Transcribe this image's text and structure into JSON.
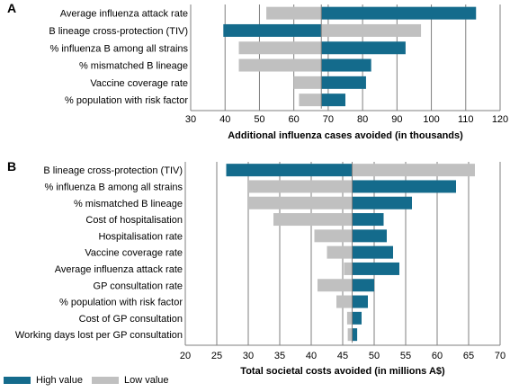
{
  "colors": {
    "high": "#146b8c",
    "low": "#c0c0c0",
    "grid": "#7f7f7f"
  },
  "legend": {
    "high_label": "High value",
    "low_label": "Low value"
  },
  "chart_data": [
    {
      "panel_label": "A",
      "type": "bar",
      "orientation": "horizontal",
      "style": "tornado",
      "xlabel": "Additional influenza cases avoided (in thousands)",
      "xlim": [
        30,
        120
      ],
      "xticks": [
        30,
        40,
        50,
        60,
        70,
        80,
        90,
        100,
        110,
        120
      ],
      "base_value": 68,
      "grid": true,
      "categories": [
        "Average influenza attack rate",
        "B lineage cross-protection (TIV)",
        "% influenza B among all strains",
        "% mismatched B lineage",
        "Vaccine coverage rate",
        "% population with risk factor"
      ],
      "series": [
        {
          "name": "High value",
          "values": [
            113,
            39.5,
            92.5,
            82.5,
            81,
            75
          ]
        },
        {
          "name": "Low value",
          "values": [
            52,
            97,
            44,
            44,
            60,
            61.5
          ]
        }
      ]
    },
    {
      "panel_label": "B",
      "type": "bar",
      "orientation": "horizontal",
      "style": "tornado",
      "xlabel": "Total societal costs avoided (in millions A$)",
      "xlim": [
        20,
        70
      ],
      "xticks": [
        20,
        25,
        30,
        35,
        40,
        45,
        50,
        55,
        60,
        65,
        70
      ],
      "base_value": 46.5,
      "grid": true,
      "categories": [
        "B lineage cross-protection (TIV)",
        "% influenza B among all strains",
        "% mismatched B lineage",
        "Cost of hospitalisation",
        "Hospitalisation rate",
        "Vaccine coverage rate",
        "Average influenza attack rate",
        "GP consultation rate",
        "% population with risk factor",
        "Cost of GP consultation",
        "Working days lost per GP consultation"
      ],
      "series": [
        {
          "name": "High value",
          "values": [
            26.5,
            63,
            56,
            51.5,
            52,
            53,
            54,
            50,
            49,
            48,
            47.3
          ]
        },
        {
          "name": "Low value",
          "values": [
            66,
            30,
            30,
            34,
            40.5,
            42.5,
            45.2,
            41,
            44,
            45.7,
            45.8
          ]
        }
      ]
    }
  ]
}
